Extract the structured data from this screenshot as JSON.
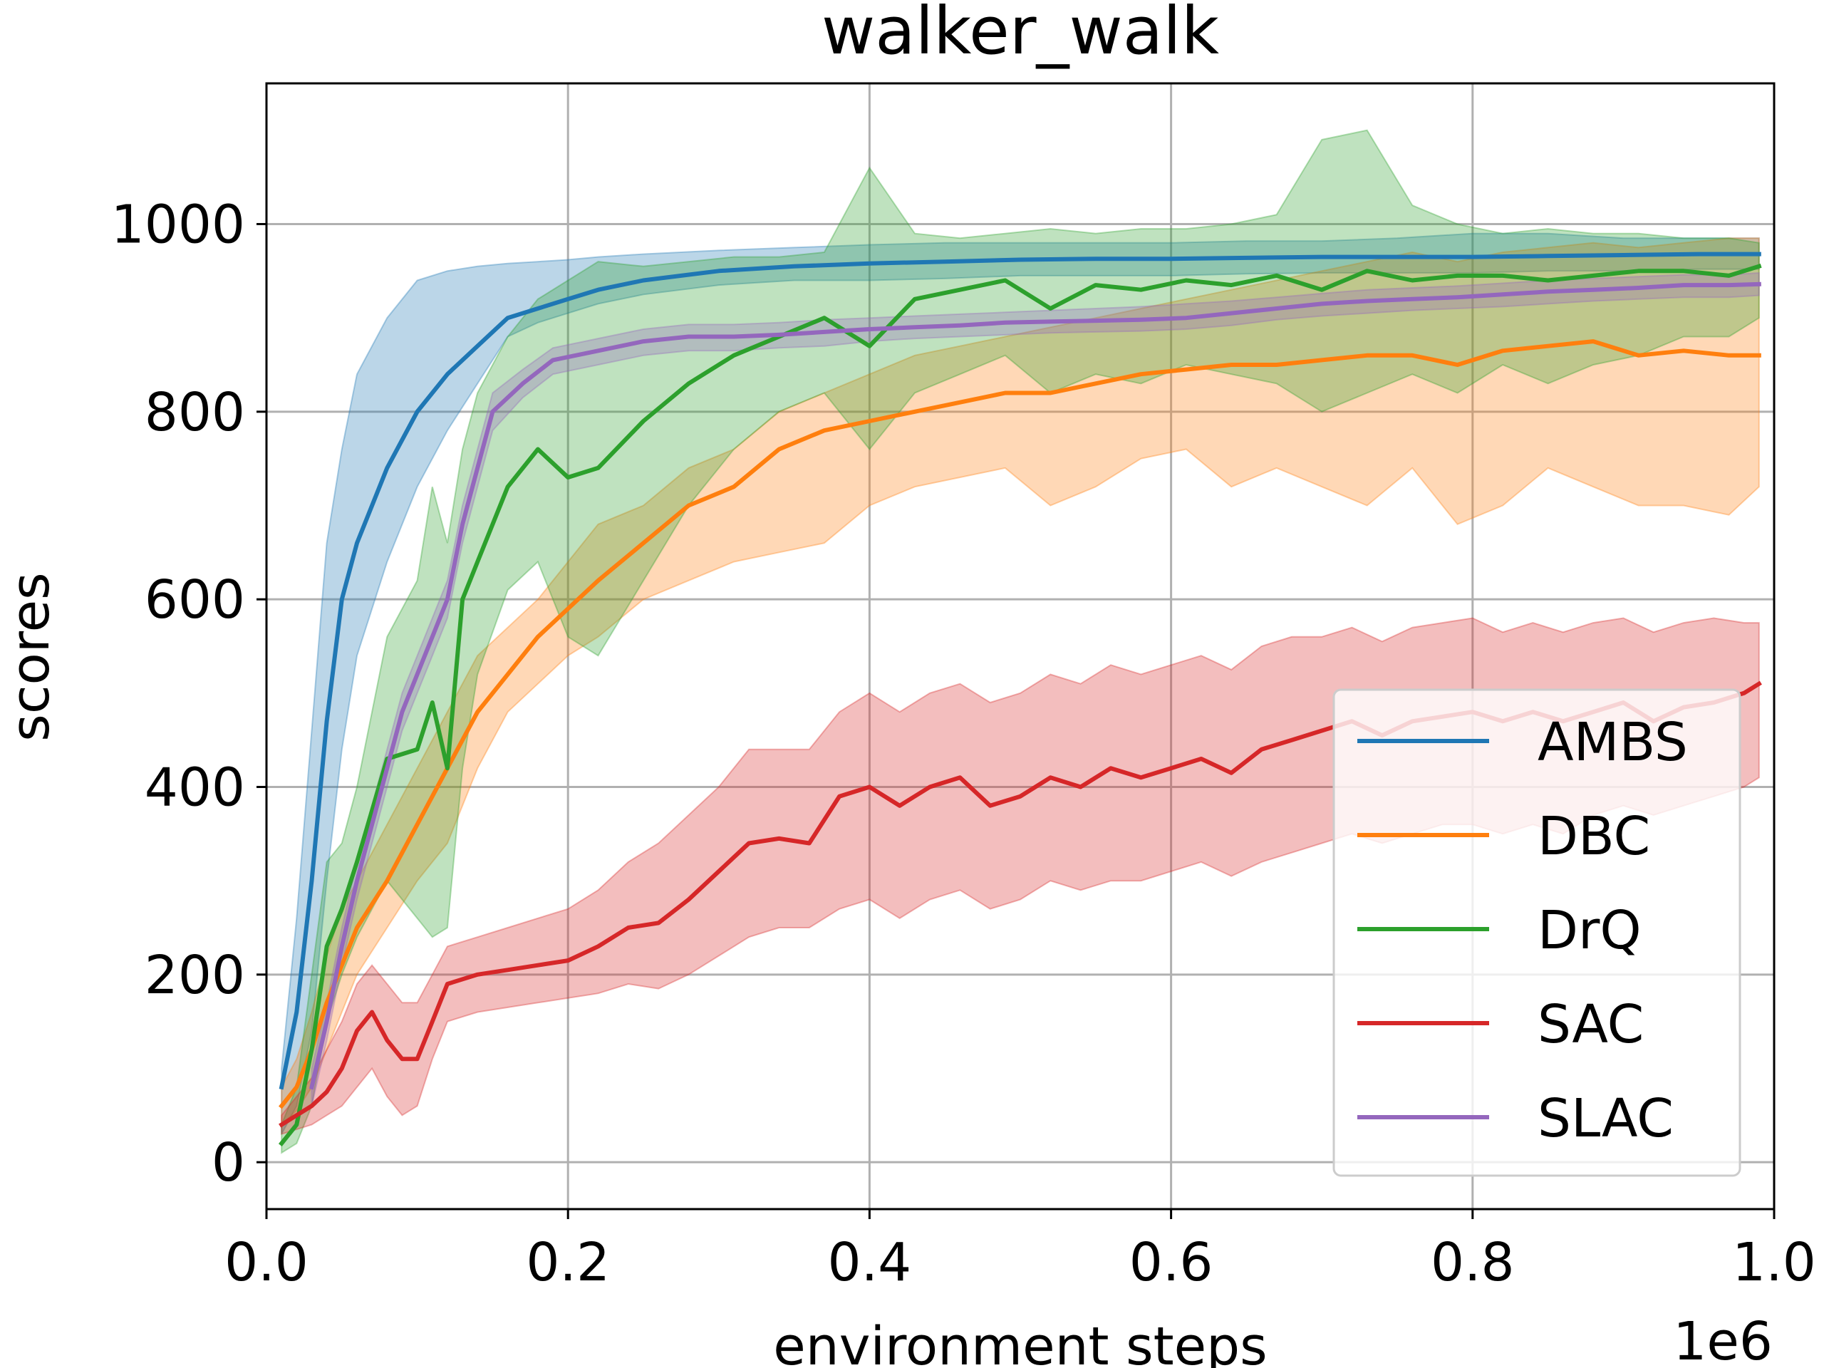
{
  "chart_data": {
    "type": "line",
    "title": "walker_walk",
    "xlabel": "environment steps",
    "ylabel": "scores",
    "x_offset_label": "1e6",
    "xlim": [
      0.0,
      1.0
    ],
    "ylim": [
      -50,
      1150
    ],
    "grid": true,
    "legend_position": "center-right",
    "x_ticks": [
      {
        "value": 0.0,
        "label": "0.0"
      },
      {
        "value": 0.2,
        "label": "0.2"
      },
      {
        "value": 0.4,
        "label": "0.4"
      },
      {
        "value": 0.6,
        "label": "0.6"
      },
      {
        "value": 0.8,
        "label": "0.8"
      },
      {
        "value": 1.0,
        "label": "1.0"
      }
    ],
    "y_ticks": [
      {
        "value": 0,
        "label": "0"
      },
      {
        "value": 200,
        "label": "200"
      },
      {
        "value": 400,
        "label": "400"
      },
      {
        "value": 600,
        "label": "600"
      },
      {
        "value": 800,
        "label": "800"
      },
      {
        "value": 1000,
        "label": "1000"
      }
    ],
    "series": [
      {
        "name": "AMBS",
        "color": "#1f77b4",
        "x": [
          0.01,
          0.02,
          0.03,
          0.04,
          0.05,
          0.06,
          0.08,
          0.1,
          0.12,
          0.14,
          0.16,
          0.18,
          0.2,
          0.22,
          0.25,
          0.3,
          0.35,
          0.4,
          0.45,
          0.5,
          0.55,
          0.6,
          0.65,
          0.7,
          0.75,
          0.8,
          0.85,
          0.9,
          0.95,
          0.99
        ],
        "y": [
          80,
          160,
          300,
          470,
          600,
          660,
          740,
          800,
          840,
          870,
          900,
          910,
          920,
          930,
          940,
          950,
          955,
          958,
          960,
          962,
          963,
          963,
          964,
          965,
          965,
          965,
          966,
          967,
          968,
          968
        ],
        "lower": [
          30,
          60,
          140,
          300,
          440,
          540,
          640,
          720,
          780,
          830,
          880,
          895,
          905,
          915,
          925,
          935,
          940,
          940,
          942,
          945,
          945,
          945,
          947,
          948,
          948,
          948,
          950,
          950,
          952,
          952
        ],
        "upper": [
          100,
          260,
          460,
          660,
          760,
          840,
          900,
          940,
          950,
          955,
          958,
          960,
          962,
          965,
          968,
          972,
          975,
          978,
          980,
          980,
          980,
          980,
          982,
          982,
          985,
          990,
          990,
          985,
          985,
          985
        ]
      },
      {
        "name": "DBC",
        "color": "#ff7f0e",
        "x": [
          0.01,
          0.02,
          0.03,
          0.04,
          0.05,
          0.06,
          0.08,
          0.1,
          0.12,
          0.14,
          0.16,
          0.18,
          0.2,
          0.22,
          0.25,
          0.28,
          0.31,
          0.34,
          0.37,
          0.4,
          0.43,
          0.46,
          0.49,
          0.52,
          0.55,
          0.58,
          0.61,
          0.64,
          0.67,
          0.7,
          0.73,
          0.76,
          0.79,
          0.82,
          0.85,
          0.88,
          0.91,
          0.94,
          0.97,
          0.99
        ],
        "y": [
          60,
          80,
          120,
          170,
          210,
          250,
          300,
          360,
          420,
          480,
          520,
          560,
          590,
          620,
          660,
          700,
          720,
          760,
          780,
          790,
          800,
          810,
          820,
          820,
          830,
          840,
          845,
          850,
          850,
          855,
          860,
          860,
          850,
          865,
          870,
          875,
          860,
          865,
          860,
          860
        ],
        "lower": [
          40,
          55,
          80,
          120,
          160,
          200,
          250,
          300,
          340,
          420,
          480,
          510,
          540,
          560,
          600,
          620,
          640,
          650,
          660,
          700,
          720,
          730,
          740,
          700,
          720,
          750,
          760,
          720,
          740,
          720,
          700,
          740,
          680,
          700,
          740,
          720,
          700,
          700,
          690,
          720
        ],
        "upper": [
          80,
          110,
          160,
          220,
          270,
          300,
          360,
          420,
          480,
          540,
          570,
          600,
          640,
          680,
          700,
          740,
          760,
          800,
          820,
          840,
          860,
          870,
          880,
          890,
          900,
          910,
          920,
          930,
          940,
          950,
          960,
          970,
          960,
          970,
          975,
          980,
          975,
          980,
          985,
          985
        ]
      },
      {
        "name": "DrQ",
        "color": "#2ca02c",
        "x": [
          0.01,
          0.02,
          0.03,
          0.04,
          0.05,
          0.06,
          0.08,
          0.1,
          0.11,
          0.12,
          0.13,
          0.14,
          0.16,
          0.18,
          0.2,
          0.22,
          0.25,
          0.28,
          0.31,
          0.34,
          0.37,
          0.4,
          0.43,
          0.46,
          0.49,
          0.52,
          0.55,
          0.58,
          0.61,
          0.64,
          0.67,
          0.7,
          0.73,
          0.76,
          0.79,
          0.82,
          0.85,
          0.88,
          0.91,
          0.94,
          0.97,
          0.99
        ],
        "y": [
          20,
          40,
          120,
          230,
          270,
          320,
          430,
          440,
          490,
          420,
          600,
          640,
          720,
          760,
          730,
          740,
          790,
          830,
          860,
          880,
          900,
          870,
          920,
          930,
          940,
          910,
          935,
          930,
          940,
          935,
          945,
          930,
          950,
          940,
          945,
          945,
          940,
          945,
          950,
          950,
          945,
          955
        ],
        "lower": [
          10,
          20,
          60,
          150,
          200,
          240,
          300,
          260,
          240,
          250,
          420,
          520,
          610,
          640,
          560,
          540,
          620,
          700,
          760,
          800,
          820,
          760,
          820,
          840,
          860,
          820,
          840,
          830,
          850,
          840,
          830,
          800,
          820,
          840,
          820,
          850,
          830,
          850,
          860,
          880,
          880,
          900
        ],
        "upper": [
          40,
          80,
          200,
          320,
          340,
          400,
          560,
          620,
          720,
          660,
          760,
          820,
          880,
          920,
          940,
          960,
          955,
          960,
          965,
          965,
          970,
          1060,
          990,
          985,
          990,
          995,
          990,
          995,
          995,
          1000,
          1010,
          1090,
          1100,
          1020,
          1000,
          990,
          995,
          990,
          990,
          985,
          985,
          980
        ]
      },
      {
        "name": "SAC",
        "color": "#d62728",
        "x": [
          0.01,
          0.02,
          0.03,
          0.04,
          0.05,
          0.06,
          0.07,
          0.08,
          0.09,
          0.1,
          0.11,
          0.12,
          0.14,
          0.16,
          0.18,
          0.2,
          0.22,
          0.24,
          0.26,
          0.28,
          0.3,
          0.32,
          0.34,
          0.36,
          0.38,
          0.4,
          0.42,
          0.44,
          0.46,
          0.48,
          0.5,
          0.52,
          0.54,
          0.56,
          0.58,
          0.6,
          0.62,
          0.64,
          0.66,
          0.68,
          0.7,
          0.72,
          0.74,
          0.76,
          0.78,
          0.8,
          0.82,
          0.84,
          0.86,
          0.88,
          0.9,
          0.92,
          0.94,
          0.96,
          0.98,
          0.99
        ],
        "y": [
          40,
          50,
          60,
          75,
          100,
          140,
          160,
          130,
          110,
          110,
          150,
          190,
          200,
          205,
          210,
          215,
          230,
          250,
          255,
          280,
          310,
          340,
          345,
          340,
          390,
          400,
          380,
          400,
          410,
          380,
          390,
          410,
          400,
          420,
          410,
          420,
          430,
          415,
          440,
          450,
          460,
          470,
          455,
          470,
          475,
          480,
          470,
          480,
          470,
          480,
          490,
          470,
          485,
          490,
          500,
          510
        ],
        "lower": [
          30,
          35,
          40,
          50,
          60,
          80,
          100,
          70,
          50,
          60,
          110,
          150,
          160,
          165,
          170,
          175,
          180,
          190,
          185,
          200,
          220,
          240,
          250,
          250,
          270,
          280,
          260,
          280,
          290,
          270,
          280,
          300,
          290,
          300,
          300,
          310,
          320,
          305,
          320,
          330,
          340,
          350,
          340,
          350,
          360,
          360,
          350,
          360,
          350,
          370,
          380,
          370,
          380,
          390,
          400,
          410
        ],
        "upper": [
          50,
          70,
          90,
          120,
          150,
          190,
          210,
          190,
          170,
          170,
          200,
          230,
          240,
          250,
          260,
          270,
          290,
          320,
          340,
          370,
          400,
          440,
          440,
          440,
          480,
          500,
          480,
          500,
          510,
          490,
          500,
          520,
          510,
          530,
          520,
          530,
          540,
          525,
          550,
          560,
          560,
          570,
          555,
          570,
          575,
          580,
          565,
          575,
          565,
          575,
          580,
          565,
          575,
          580,
          575,
          575
        ]
      },
      {
        "name": "SLAC",
        "color": "#9467bd",
        "x": [
          0.03,
          0.04,
          0.05,
          0.06,
          0.07,
          0.08,
          0.09,
          0.1,
          0.11,
          0.12,
          0.13,
          0.14,
          0.15,
          0.17,
          0.19,
          0.22,
          0.25,
          0.28,
          0.31,
          0.34,
          0.37,
          0.4,
          0.43,
          0.46,
          0.49,
          0.52,
          0.55,
          0.58,
          0.61,
          0.64,
          0.67,
          0.7,
          0.73,
          0.76,
          0.79,
          0.82,
          0.85,
          0.88,
          0.91,
          0.94,
          0.97,
          0.99
        ],
        "y": [
          80,
          150,
          230,
          300,
          360,
          420,
          480,
          520,
          560,
          600,
          680,
          740,
          800,
          830,
          855,
          865,
          875,
          880,
          880,
          882,
          885,
          888,
          890,
          892,
          895,
          896,
          897,
          898,
          900,
          905,
          910,
          915,
          918,
          920,
          922,
          925,
          928,
          930,
          932,
          935,
          935,
          936
        ],
        "lower": [
          60,
          130,
          210,
          280,
          340,
          400,
          460,
          500,
          540,
          580,
          660,
          720,
          780,
          815,
          840,
          850,
          860,
          865,
          865,
          868,
          870,
          875,
          878,
          880,
          882,
          884,
          885,
          886,
          888,
          892,
          898,
          902,
          905,
          908,
          910,
          912,
          915,
          918,
          920,
          922,
          922,
          924
        ],
        "upper": [
          100,
          170,
          250,
          320,
          380,
          440,
          500,
          540,
          580,
          620,
          700,
          760,
          820,
          845,
          868,
          878,
          888,
          893,
          893,
          895,
          898,
          900,
          902,
          904,
          906,
          908,
          910,
          912,
          915,
          918,
          922,
          926,
          930,
          932,
          934,
          937,
          940,
          942,
          944,
          946,
          946,
          948
        ]
      }
    ]
  }
}
